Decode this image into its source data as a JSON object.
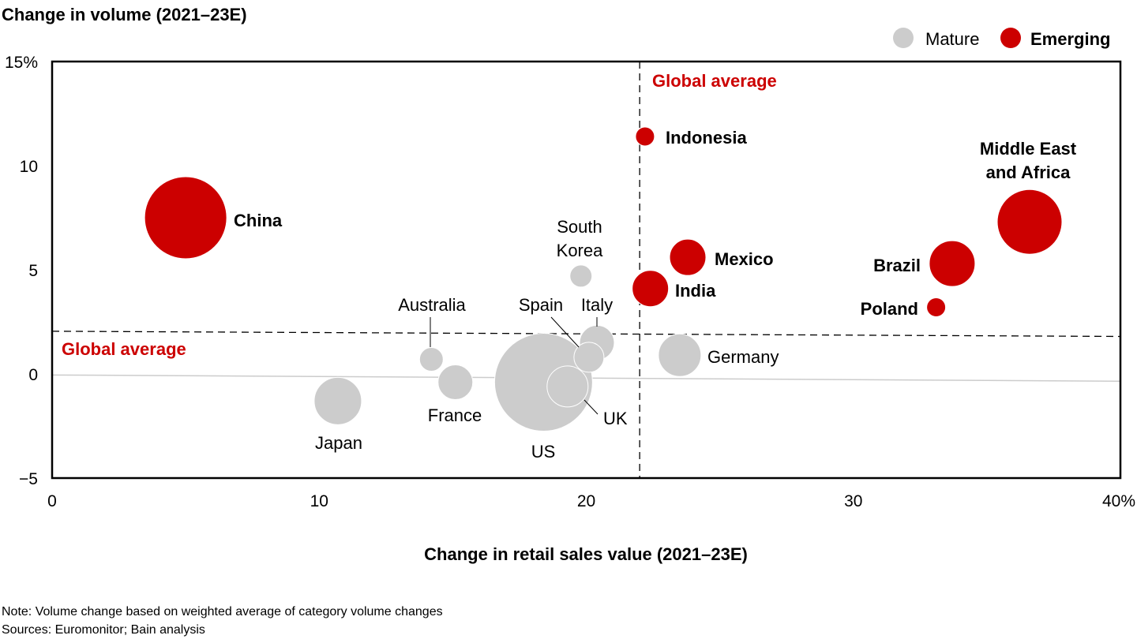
{
  "chart_data": {
    "type": "scatter",
    "subtype": "bubble",
    "ylabel": "Change in volume (2021–23E)",
    "xlabel": "Change in retail sales value (2021–23E)",
    "xlim": [
      0,
      40
    ],
    "ylim": [
      -5,
      15
    ],
    "x_ticks": [
      "0",
      "10",
      "20",
      "30",
      "40%"
    ],
    "x_tick_values": [
      0,
      10,
      20,
      30,
      40
    ],
    "y_ticks": [
      "15%",
      "10",
      "5",
      "0",
      "−5"
    ],
    "y_tick_values": [
      15,
      10,
      5,
      0,
      -5
    ],
    "grid": false,
    "legend": {
      "placement": "top-right",
      "entries": [
        {
          "name": "Mature",
          "color": "#cccccc"
        },
        {
          "name": "Emerging",
          "color": "#cc0000"
        }
      ]
    },
    "reference_lines": {
      "vertical": {
        "label": "Global average",
        "x": 22.0
      },
      "horizontal": {
        "label": "Global average",
        "y_start": 2.05,
        "y_end": 1.8
      }
    },
    "zero_line": {
      "y_start": -0.05,
      "y_end": -0.35
    },
    "points": [
      {
        "name": "China",
        "group": "Emerging",
        "x": 5.0,
        "y": 7.5,
        "size": 52
      },
      {
        "name": "Indonesia",
        "group": "Emerging",
        "x": 22.2,
        "y": 11.4,
        "size": 12
      },
      {
        "name": "Mexico",
        "group": "Emerging",
        "x": 23.8,
        "y": 5.6,
        "size": 23
      },
      {
        "name": "India",
        "group": "Emerging",
        "x": 22.4,
        "y": 4.1,
        "size": 23
      },
      {
        "name": "Brazil",
        "group": "Emerging",
        "x": 33.7,
        "y": 5.3,
        "size": 29
      },
      {
        "name": "Poland",
        "group": "Emerging",
        "x": 33.1,
        "y": 3.2,
        "size": 12
      },
      {
        "name": "Middle East and Africa",
        "lines": [
          "Middle East",
          "and Africa"
        ],
        "group": "Emerging",
        "x": 36.6,
        "y": 7.3,
        "size": 41
      },
      {
        "name": "South Korea",
        "lines": [
          "South",
          "Korea"
        ],
        "group": "Mature",
        "x": 19.8,
        "y": 4.7,
        "size": 14
      },
      {
        "name": "US",
        "group": "Mature",
        "x": 18.4,
        "y": -0.4,
        "size": 62
      },
      {
        "name": "Australia",
        "group": "Mature",
        "x": 14.2,
        "y": 0.7,
        "size": 15
      },
      {
        "name": "Italy",
        "group": "Mature",
        "x": 20.4,
        "y": 1.5,
        "size": 22
      },
      {
        "name": "Spain",
        "group": "Mature",
        "x": 20.1,
        "y": 0.8,
        "size": 19
      },
      {
        "name": "UK",
        "group": "Mature",
        "x": 19.3,
        "y": -0.6,
        "size": 26
      },
      {
        "name": "Germany",
        "group": "Mature",
        "x": 23.5,
        "y": 0.9,
        "size": 27
      },
      {
        "name": "France",
        "group": "Mature",
        "x": 15.1,
        "y": -0.4,
        "size": 22
      },
      {
        "name": "Japan",
        "group": "Mature",
        "x": 10.7,
        "y": -1.3,
        "size": 30
      }
    ],
    "notes": [
      "Note: Volume change based on weighted average of category volume changes",
      "Sources: Euromonitor; Bain analysis"
    ]
  }
}
